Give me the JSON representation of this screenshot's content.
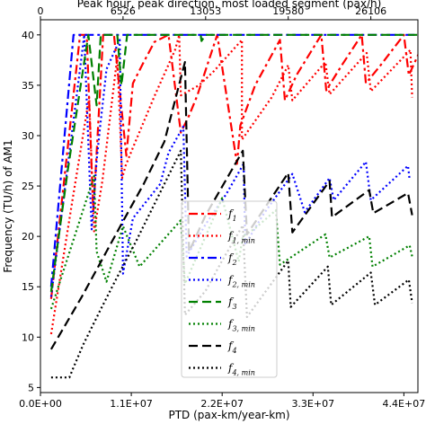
{
  "chart_data": {
    "type": "line",
    "xlabel": "PTD (pax-km/year-km)",
    "ylabel": "Frequency (TU/h) of AM1",
    "top_xlabel": "Peak hour, peak direction, most loaded segment (pax/h)",
    "xlim": [
      0,
      45700000
    ],
    "ylim": [
      4.5,
      41.5
    ],
    "bottom_ticks": [
      {
        "value": 0,
        "label": "0.0E+00"
      },
      {
        "value": 11000000,
        "label": "1.1E+07"
      },
      {
        "value": 22000000,
        "label": "2.2E+07"
      },
      {
        "value": 33000000,
        "label": "3.3E+07"
      },
      {
        "value": 44000000,
        "label": "4.4E+07"
      }
    ],
    "top_ticks": [
      {
        "value": 0,
        "label": "0"
      },
      {
        "value": 10000000,
        "label": "6526"
      },
      {
        "value": 20000000,
        "label": "13053"
      },
      {
        "value": 30000000,
        "label": "19580"
      },
      {
        "value": 40000000,
        "label": "26106"
      }
    ],
    "y_ticks": [
      5,
      10,
      15,
      20,
      25,
      30,
      35,
      40
    ],
    "grid": false,
    "legend_position": "lower-center",
    "series": [
      {
        "name": "f",
        "sub": "1",
        "color": "#ff0000",
        "dash": "10,4,3,4",
        "x": [
          1300000,
          4800000,
          5600000,
          6400000,
          7600000,
          8900000,
          10400000,
          11200000,
          12500000,
          13800000,
          15500000,
          17000000,
          18000000,
          19000000,
          21400000,
          23800000,
          24200000,
          26000000,
          29000000,
          29600000,
          31000000,
          34000000,
          34600000,
          36500000,
          38900000,
          39400000,
          41200000,
          44000000,
          44600000,
          46000000
        ],
        "y": [
          13.8,
          40,
          40,
          22.3,
          40,
          40,
          28,
          35.2,
          37.3,
          39.3,
          40,
          30.3,
          32,
          34,
          40,
          27.2,
          31,
          35,
          39.5,
          33.5,
          36,
          40,
          34.5,
          37,
          40,
          35.2,
          37,
          40,
          36,
          38.5
        ]
      },
      {
        "name": "f",
        "sub": "1, min",
        "color": "#ff0000",
        "dash": "2,3",
        "x": [
          1300000,
          3800000,
          5900000,
          6500000,
          7500000,
          9300000,
          9900000,
          10300000,
          11200000,
          13800000,
          16300000,
          16800000,
          17000000,
          19200000,
          21000000,
          24400000,
          24400000,
          28000000,
          30000000,
          30500000,
          34500000,
          35000000,
          39500000,
          40000000,
          44800000,
          45000000
        ],
        "y": [
          10.3,
          23.2,
          33.8,
          20.5,
          25.5,
          37.8,
          25.8,
          27,
          28.8,
          33.9,
          38.5,
          40,
          34,
          35,
          36.4,
          39.5,
          29.6,
          33.8,
          37,
          33.5,
          37.3,
          34.1,
          38.2,
          34.4,
          38.5,
          33.8
        ]
      },
      {
        "name": "f",
        "sub": "2",
        "color": "#0000ff",
        "dash": "10,4,3,4",
        "x": [
          1300000,
          4000000,
          4500000,
          5000000,
          5500000,
          6500000,
          45700000
        ],
        "y": [
          15,
          40,
          40,
          40,
          40,
          40,
          40
        ]
      },
      {
        "name": "f",
        "sub": "2, min",
        "color": "#0000ff",
        "dash": "2,3",
        "x": [
          1300000,
          5000000,
          5300000,
          6200000,
          6800000,
          7200000,
          8000000,
          9600000,
          10000000,
          11200000,
          14500000,
          15500000,
          17300000,
          17700000,
          20000000,
          22500000,
          24600000,
          24800000,
          27000000,
          30500000,
          32000000,
          35000000,
          35500000,
          39400000,
          40000000,
          44500000,
          44700000
        ],
        "y": [
          14,
          38,
          40,
          20.7,
          27.5,
          30.7,
          36.6,
          39.5,
          16.3,
          21.8,
          25.2,
          28.3,
          30.9,
          18,
          21.2,
          24.2,
          27.2,
          19.2,
          22.2,
          26.2,
          22.4,
          25.8,
          23.6,
          27.4,
          23.6,
          27,
          25.6
        ]
      },
      {
        "name": "f",
        "sub": "3",
        "color": "#008000",
        "dash": "10,5",
        "x": [
          1300000,
          3300000,
          5800000,
          6800000,
          7300000,
          7800000,
          8000000,
          9300000,
          9800000,
          10500000,
          15500000,
          19400000,
          19500000,
          20000000,
          45700000
        ],
        "y": [
          14.5,
          26.5,
          40,
          33,
          40,
          40,
          40,
          40,
          35,
          40,
          40,
          40,
          39.4,
          40,
          40
        ]
      },
      {
        "name": "f",
        "sub": "3, min",
        "color": "#008000",
        "dash": "2,3",
        "x": [
          1300000,
          6500000,
          6800000,
          8000000,
          10000000,
          12000000,
          17000000,
          17500000,
          22000000,
          24000000,
          24500000,
          26000000,
          28500000,
          29000000,
          34500000,
          35000000,
          39800000,
          40200000,
          44700000,
          45000000
        ],
        "y": [
          12.8,
          26,
          18.5,
          15.5,
          21,
          17,
          21.6,
          15.3,
          23.8,
          17.5,
          20,
          20.8,
          22.6,
          17.2,
          20.2,
          17.9,
          20,
          17,
          19.1,
          18
        ]
      },
      {
        "name": "f",
        "sub": "4",
        "color": "#000000",
        "dash": "10,5",
        "x": [
          1300000,
          5000000,
          8000000,
          10000000,
          12500000,
          15000000,
          17500000,
          18000000,
          20000000,
          24500000,
          25000000,
          30000000,
          30500000,
          35000000,
          35300000,
          39800000,
          40300000,
          44500000,
          45000000
        ],
        "y": [
          8.8,
          14,
          18.5,
          21.5,
          25.2,
          29.4,
          37.3,
          18.5,
          22.1,
          28.5,
          20.2,
          26.3,
          20.4,
          25.5,
          21.9,
          24.6,
          22.3,
          24.3,
          22.1
        ]
      },
      {
        "name": "f",
        "sub": "4, min",
        "color": "#000000",
        "dash": "2,3",
        "x": [
          1300000,
          3500000,
          4000000,
          5200000,
          7200000,
          9000000,
          11500000,
          15000000,
          17000000,
          17500000,
          20000000,
          22000000,
          24500000,
          25000000,
          30000000,
          30300000,
          34800000,
          35200000,
          40000000,
          40500000,
          44600000,
          45000000
        ],
        "y": [
          6,
          6,
          7,
          9.3,
          12.6,
          15.5,
          19.4,
          25.2,
          28.5,
          12.2,
          14.6,
          17.6,
          21.1,
          12,
          17.6,
          13,
          17,
          13.2,
          16.4,
          13.2,
          15.7,
          13.4
        ]
      }
    ]
  }
}
